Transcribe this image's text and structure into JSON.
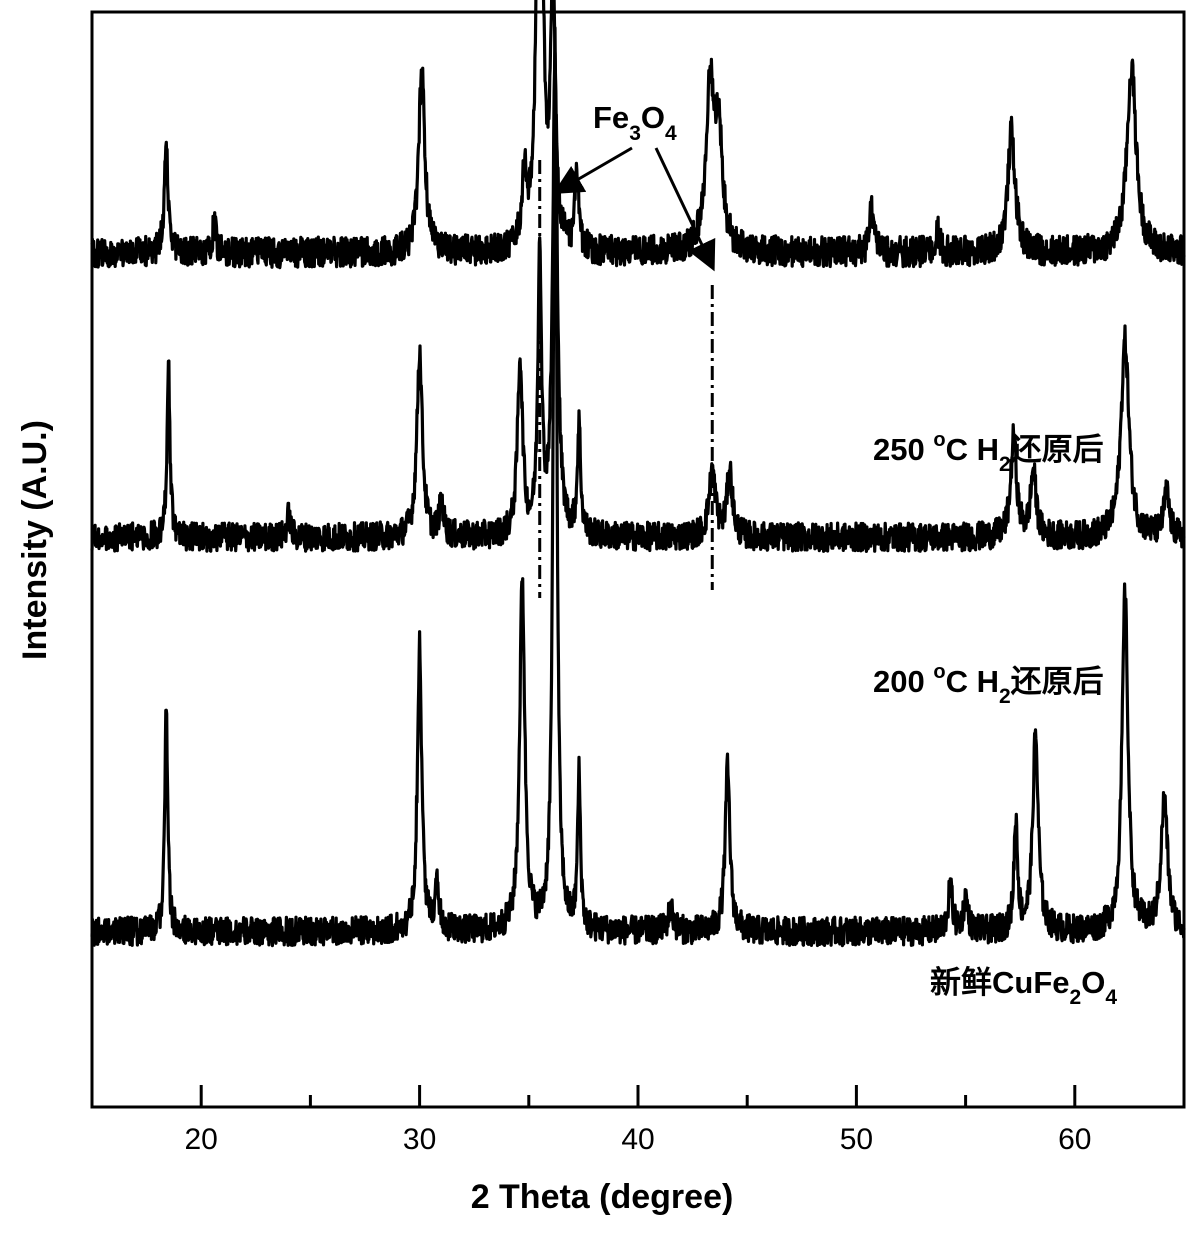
{
  "chart_data": {
    "type": "line",
    "xlabel": "2 Theta (degree)",
    "ylabel": "Intensity (A.U.)",
    "xlim": [
      15,
      65
    ],
    "x_ticks": [
      20,
      30,
      40,
      50,
      60
    ],
    "x_tick_labels": [
      "20",
      "30",
      "40",
      "50",
      "60"
    ],
    "x_minor_ticks": [
      25,
      35,
      45,
      55
    ],
    "y_ticks_shown": false,
    "grid": false,
    "annotation": {
      "main": "Fe",
      "sub1": "3",
      "mid": "O",
      "sub2": "4",
      "arrow_targets_x": [
        35.5,
        43.4
      ],
      "guide_line_x": [
        35.5,
        43.4
      ]
    },
    "series": [
      {
        "label_parts": [
          "250 ",
          "o",
          "C H",
          "2",
          "还原后"
        ],
        "baseline": 0.78,
        "noise": 0.014,
        "peaks": [
          [
            18.4,
            0.1,
            0.1
          ],
          [
            20.6,
            0.03,
            0.08
          ],
          [
            30.1,
            0.17,
            0.16
          ],
          [
            34.8,
            0.06,
            0.15
          ],
          [
            35.5,
            0.67,
            0.12
          ],
          [
            36.1,
            0.24,
            0.13
          ],
          [
            37.2,
            0.07,
            0.1
          ],
          [
            43.3,
            0.15,
            0.22
          ],
          [
            43.7,
            0.1,
            0.2
          ],
          [
            50.7,
            0.04,
            0.12
          ],
          [
            53.7,
            0.02,
            0.12
          ],
          [
            57.1,
            0.11,
            0.2
          ],
          [
            62.6,
            0.17,
            0.25
          ]
        ]
      },
      {
        "label_parts": [
          "200 ",
          "o",
          "C H",
          "2",
          "还原后"
        ],
        "baseline": 0.52,
        "noise": 0.013,
        "peaks": [
          [
            18.5,
            0.16,
            0.08
          ],
          [
            24.0,
            0.02,
            0.1
          ],
          [
            30.0,
            0.17,
            0.15
          ],
          [
            31.0,
            0.03,
            0.12
          ],
          [
            34.6,
            0.16,
            0.14
          ],
          [
            35.5,
            0.26,
            0.1
          ],
          [
            36.2,
            0.43,
            0.13
          ],
          [
            37.3,
            0.1,
            0.09
          ],
          [
            43.4,
            0.06,
            0.18
          ],
          [
            44.2,
            0.06,
            0.15
          ],
          [
            57.2,
            0.09,
            0.16
          ],
          [
            58.1,
            0.06,
            0.15
          ],
          [
            62.3,
            0.18,
            0.22
          ],
          [
            64.2,
            0.04,
            0.15
          ]
        ]
      },
      {
        "label_parts": [
          "新鲜CuFe",
          "2",
          "O",
          "4"
        ],
        "baseline": 0.16,
        "noise": 0.013,
        "peaks": [
          [
            18.4,
            0.21,
            0.08
          ],
          [
            30.0,
            0.26,
            0.12
          ],
          [
            30.8,
            0.04,
            0.12
          ],
          [
            34.7,
            0.32,
            0.14
          ],
          [
            36.2,
            0.82,
            0.1
          ],
          [
            37.3,
            0.14,
            0.08
          ],
          [
            41.5,
            0.02,
            0.15
          ],
          [
            44.1,
            0.15,
            0.13
          ],
          [
            54.3,
            0.04,
            0.12
          ],
          [
            55.0,
            0.03,
            0.12
          ],
          [
            57.3,
            0.1,
            0.1
          ],
          [
            58.2,
            0.18,
            0.15
          ],
          [
            62.3,
            0.31,
            0.16
          ],
          [
            64.1,
            0.12,
            0.18
          ]
        ]
      }
    ]
  }
}
